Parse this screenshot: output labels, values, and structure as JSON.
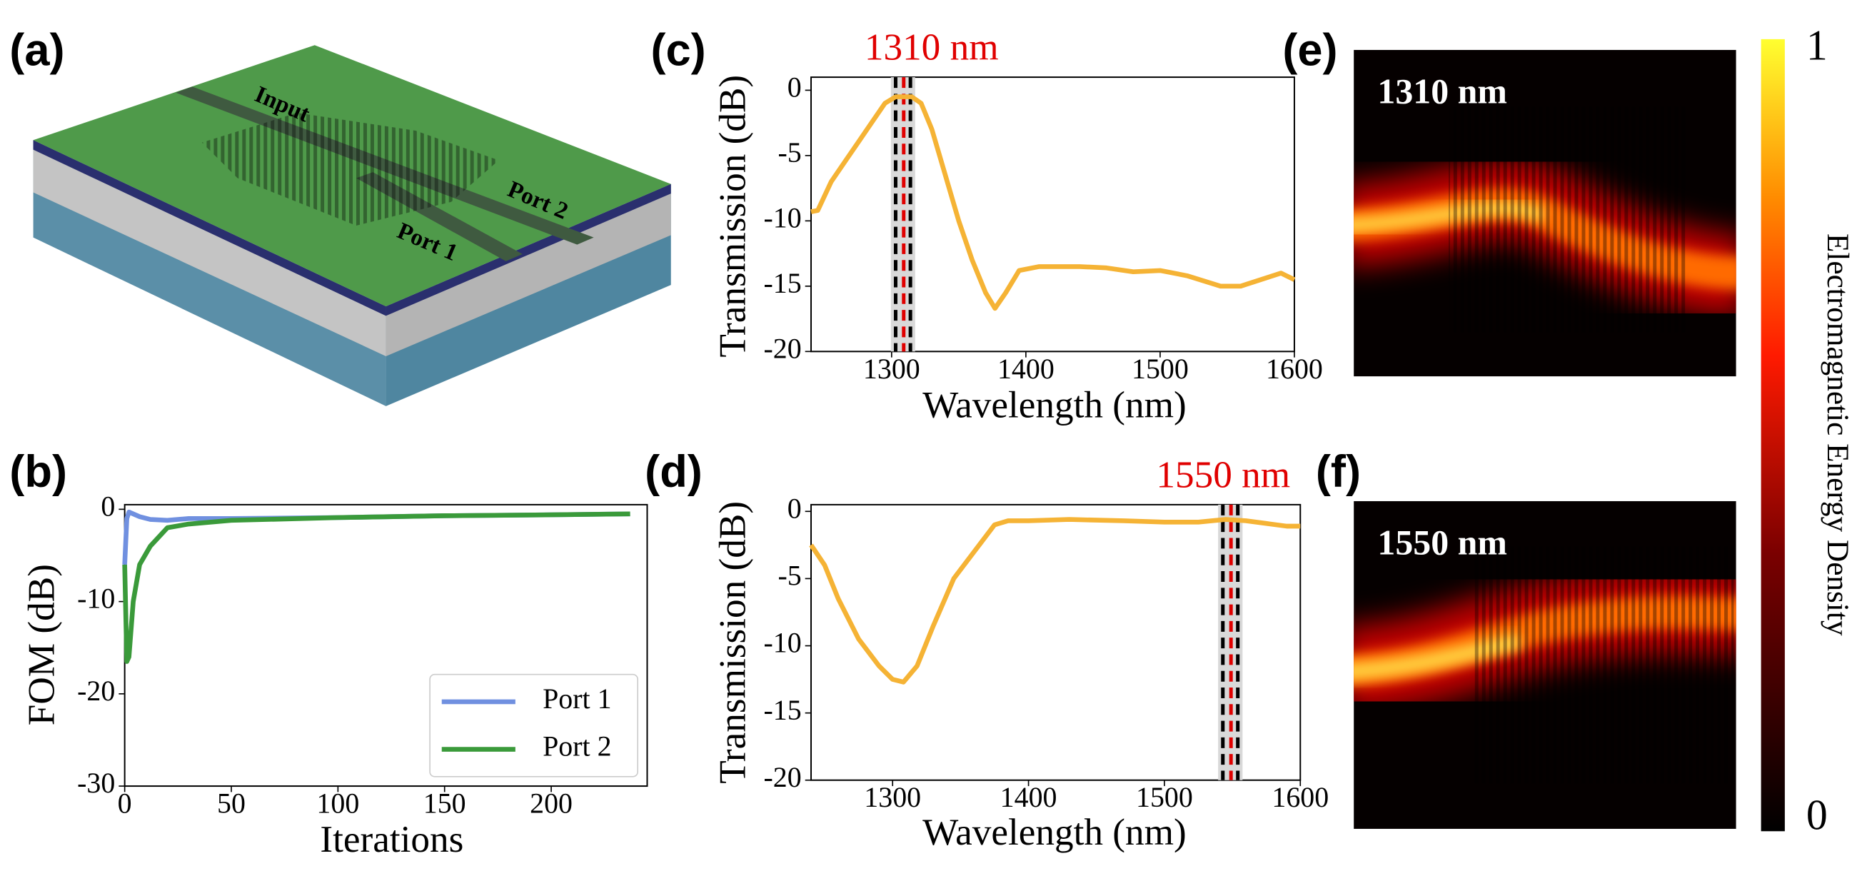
{
  "panel_labels": [
    "(a)",
    "(b)",
    "(c)",
    "(d)",
    "(e)",
    "(f)"
  ],
  "device": {
    "labels": [
      "Input",
      "Port 2",
      "Port 1"
    ]
  },
  "chart_data": [
    {
      "type": "line",
      "xlabel": "Iterations",
      "ylabel": "FOM (dB)",
      "xlim": [
        0,
        245
      ],
      "ylim": [
        -30,
        0.5
      ],
      "xticks": [
        0,
        50,
        100,
        150,
        200
      ],
      "yticks": [
        0,
        -10,
        -20,
        -30
      ],
      "legend": "lower right",
      "series": [
        {
          "name": "Port 1",
          "color": "#7090e0",
          "x": [
            0,
            1,
            2,
            4,
            7,
            12,
            20,
            30,
            50,
            100,
            150,
            200,
            237
          ],
          "values": [
            -6,
            -1,
            -0.3,
            -0.5,
            -0.8,
            -1.1,
            -1.2,
            -1,
            -1,
            -0.9,
            -0.7,
            -0.6,
            -0.5
          ]
        },
        {
          "name": "Port 2",
          "color": "#3a9a3a",
          "x": [
            0,
            1,
            2,
            4,
            7,
            12,
            20,
            30,
            50,
            100,
            150,
            200,
            237
          ],
          "values": [
            -6,
            -16.5,
            -16,
            -10,
            -6,
            -4,
            -2,
            -1.6,
            -1.2,
            -0.9,
            -0.7,
            -0.6,
            -0.5
          ]
        }
      ]
    },
    {
      "type": "line",
      "xlabel": "Wavelength (nm)",
      "ylabel": "Transmission (dB)",
      "xlim": [
        1240,
        1600
      ],
      "ylim": [
        -20,
        1
      ],
      "xticks": [
        1300,
        1400,
        1500,
        1600
      ],
      "yticks": [
        0,
        -5,
        -10,
        -15,
        -20
      ],
      "annotation": {
        "text": "1310 nm",
        "color": "#e00000"
      },
      "markers": [
        {
          "x": 1303,
          "color": "#000000"
        },
        {
          "x": 1309,
          "color": "#e00000"
        },
        {
          "x": 1314,
          "color": "#000000"
        }
      ],
      "series": [
        {
          "color": "#f5b335",
          "x": [
            1240,
            1245,
            1255,
            1265,
            1275,
            1285,
            1295,
            1303,
            1315,
            1322,
            1330,
            1340,
            1350,
            1360,
            1370,
            1377,
            1385,
            1395,
            1410,
            1440,
            1460,
            1480,
            1500,
            1520,
            1545,
            1560,
            1575,
            1590,
            1600
          ],
          "values": [
            -9.3,
            -9.2,
            -7,
            -5.5,
            -4,
            -2.5,
            -1,
            -0.5,
            -0.5,
            -1,
            -3,
            -6.5,
            -10,
            -13,
            -15.5,
            -16.7,
            -15.5,
            -13.8,
            -13.5,
            -13.5,
            -13.6,
            -13.9,
            -13.8,
            -14.2,
            -15,
            -15,
            -14.5,
            -14,
            -14.5
          ]
        }
      ]
    },
    {
      "type": "line",
      "xlabel": "Wavelength (nm)",
      "ylabel": "Transmission (dB)",
      "xlim": [
        1240,
        1600
      ],
      "ylim": [
        -20,
        0.5
      ],
      "xticks": [
        1300,
        1400,
        1500,
        1600
      ],
      "yticks": [
        0,
        -5,
        -10,
        -15,
        -20
      ],
      "annotation": {
        "text": "1550 nm",
        "color": "#e00000"
      },
      "markers": [
        {
          "x": 1543,
          "color": "#000000"
        },
        {
          "x": 1549,
          "color": "#e00000"
        },
        {
          "x": 1554,
          "color": "#000000"
        }
      ],
      "series": [
        {
          "color": "#f5b335",
          "x": [
            1240,
            1250,
            1260,
            1275,
            1290,
            1300,
            1308,
            1318,
            1330,
            1345,
            1360,
            1375,
            1385,
            1400,
            1430,
            1470,
            1500,
            1525,
            1545,
            1560,
            1575,
            1590,
            1600
          ],
          "values": [
            -2.5,
            -4,
            -6.5,
            -9.5,
            -11.5,
            -12.5,
            -12.7,
            -11.5,
            -8.5,
            -5,
            -3,
            -1,
            -0.7,
            -0.7,
            -0.6,
            -0.7,
            -0.8,
            -0.8,
            -0.6,
            -0.7,
            -0.9,
            -1.1,
            -1.1
          ]
        }
      ]
    }
  ],
  "field_maps": [
    {
      "label": "1310 nm"
    },
    {
      "label": "1550 nm"
    }
  ],
  "colorbar": {
    "label": "Electromagnetic Energy Density",
    "clim": [
      0,
      1
    ],
    "ticks": [
      0,
      1
    ]
  }
}
